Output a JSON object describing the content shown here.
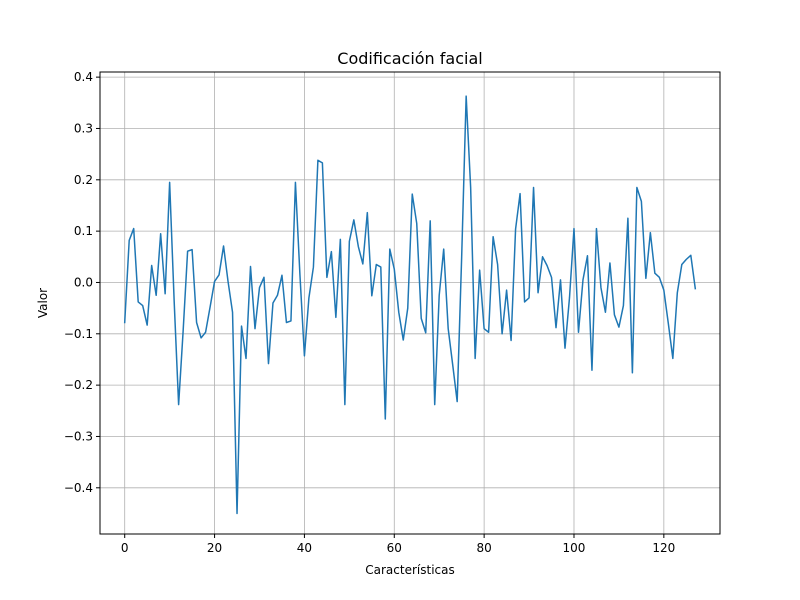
{
  "chart_data": {
    "type": "line",
    "title": "Codificación facial",
    "xlabel": "Características",
    "ylabel": "Valor",
    "xlim": [
      -5.5,
      132.5
    ],
    "ylim": [
      -0.49,
      0.41
    ],
    "grid": true,
    "xticks": [
      0,
      20,
      40,
      60,
      80,
      100,
      120
    ],
    "xtick_labels": [
      "0",
      "20",
      "40",
      "60",
      "80",
      "100",
      "120"
    ],
    "yticks": [
      -0.4,
      -0.3,
      -0.2,
      -0.1,
      0.0,
      0.1,
      0.2,
      0.3,
      0.4
    ],
    "ytick_labels": [
      "−0.4",
      "−0.3",
      "−0.2",
      "−0.1",
      "0.0",
      "0.1",
      "0.2",
      "0.3",
      "0.4"
    ],
    "series": [
      {
        "color": "#1f77b4",
        "x": [
          0,
          1,
          2,
          3,
          4,
          5,
          6,
          7,
          8,
          9,
          10,
          11,
          12,
          13,
          14,
          15,
          16,
          17,
          18,
          19,
          20,
          21,
          22,
          23,
          24,
          25,
          26,
          27,
          28,
          29,
          30,
          31,
          32,
          33,
          34,
          35,
          36,
          37,
          38,
          39,
          40,
          41,
          42,
          43,
          44,
          45,
          46,
          47,
          48,
          49,
          50,
          51,
          52,
          53,
          54,
          55,
          56,
          57,
          58,
          59,
          60,
          61,
          62,
          63,
          64,
          65,
          66,
          67,
          68,
          69,
          70,
          71,
          72,
          73,
          74,
          75,
          76,
          77,
          78,
          79,
          80,
          81,
          82,
          83,
          84,
          85,
          86,
          87,
          88,
          89,
          90,
          91,
          92,
          93,
          94,
          95,
          96,
          97,
          98,
          99,
          100,
          101,
          102,
          103,
          104,
          105,
          106,
          107,
          108,
          109,
          110,
          111,
          112,
          113,
          114,
          115,
          116,
          117,
          118,
          119,
          120,
          121,
          122,
          123,
          124,
          125,
          126,
          127
        ],
        "values": [
          -0.078,
          0.082,
          0.105,
          -0.038,
          -0.045,
          -0.083,
          0.033,
          -0.025,
          0.095,
          -0.022,
          0.195,
          -0.035,
          -0.238,
          -0.095,
          0.061,
          0.064,
          -0.078,
          -0.108,
          -0.097,
          -0.048,
          0.002,
          0.015,
          0.071,
          0.002,
          -0.058,
          -0.45,
          -0.085,
          -0.148,
          0.031,
          -0.09,
          -0.01,
          0.01,
          -0.158,
          -0.04,
          -0.025,
          0.014,
          -0.078,
          -0.075,
          0.195,
          0.015,
          -0.143,
          -0.03,
          0.03,
          0.238,
          0.233,
          0.01,
          0.06,
          -0.068,
          0.084,
          -0.238,
          0.08,
          0.122,
          0.07,
          0.036,
          0.136,
          -0.026,
          0.035,
          0.03,
          -0.266,
          0.065,
          0.026,
          -0.058,
          -0.112,
          -0.05,
          0.172,
          0.115,
          -0.07,
          -0.098,
          0.12,
          -0.238,
          -0.025,
          0.065,
          -0.09,
          -0.16,
          -0.232,
          0.05,
          0.363,
          0.185,
          -0.148,
          0.024,
          -0.09,
          -0.097,
          0.089,
          0.035,
          -0.1,
          -0.015,
          -0.113,
          0.104,
          0.173,
          -0.038,
          -0.03,
          0.185,
          -0.02,
          0.05,
          0.033,
          0.01,
          -0.088,
          0.005,
          -0.128,
          -0.03,
          0.105,
          -0.097,
          0.005,
          0.052,
          -0.171,
          0.105,
          -0.01,
          -0.058,
          0.038,
          -0.063,
          -0.087,
          -0.045,
          0.125,
          -0.176,
          0.185,
          0.158,
          0.008,
          0.097,
          0.018,
          0.01,
          -0.015,
          -0.08,
          -0.148,
          -0.02,
          0.035,
          0.045,
          0.053,
          -0.012
        ]
      }
    ]
  }
}
